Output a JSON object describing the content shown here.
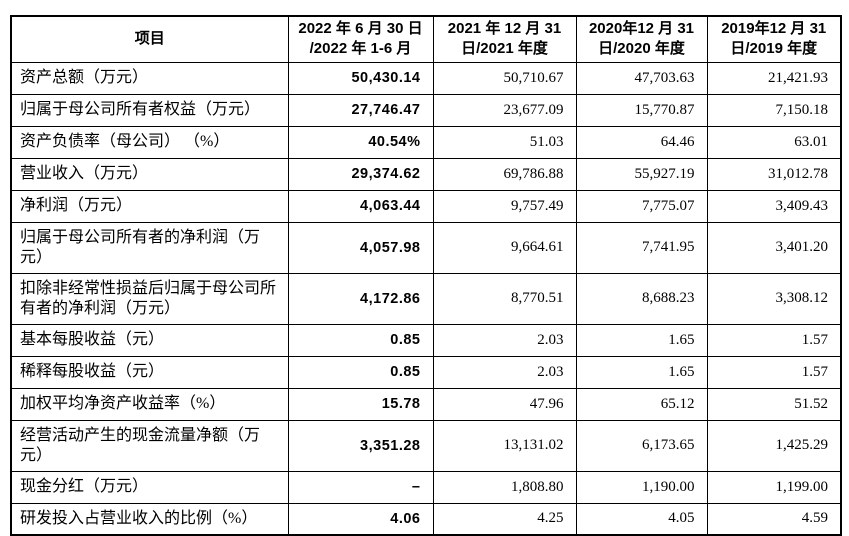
{
  "colors": {
    "background": "#ffffff",
    "border": "#000000",
    "text": "#000000"
  },
  "table": {
    "columns": [
      "项目",
      "2022 年 6 月 30 日\n/2022 年 1-6 月",
      "2021 年 12 月 31\n日/2021 年度",
      "2020年12 月 31\n日/2020 年度",
      "2019年12 月 31\n日/2019 年度"
    ],
    "rows": [
      {
        "label": "资产总额（万元）",
        "values": [
          "50,430.14",
          "50,710.67",
          "47,703.63",
          "21,421.93"
        ]
      },
      {
        "label": "归属于母公司所有者权益（万元）",
        "values": [
          "27,746.47",
          "23,677.09",
          "15,770.87",
          "7,150.18"
        ]
      },
      {
        "label": "资产负债率（母公司） （%）",
        "values": [
          "40.54%",
          "51.03",
          "64.46",
          "63.01"
        ]
      },
      {
        "label": "营业收入（万元）",
        "values": [
          "29,374.62",
          "69,786.88",
          "55,927.19",
          "31,012.78"
        ]
      },
      {
        "label": "净利润（万元）",
        "values": [
          "4,063.44",
          "9,757.49",
          "7,775.07",
          "3,409.43"
        ]
      },
      {
        "label": "归属于母公司所有者的净利润（万元）",
        "values": [
          "4,057.98",
          "9,664.61",
          "7,741.95",
          "3,401.20"
        ]
      },
      {
        "label": "扣除非经常性损益后归属于母公司所有者的净利润（万元）",
        "values": [
          "4,172.86",
          "8,770.51",
          "8,688.23",
          "3,308.12"
        ]
      },
      {
        "label": "基本每股收益（元）",
        "values": [
          "0.85",
          "2.03",
          "1.65",
          "1.57"
        ]
      },
      {
        "label": "稀释每股收益（元）",
        "values": [
          "0.85",
          "2.03",
          "1.65",
          "1.57"
        ]
      },
      {
        "label": "加权平均净资产收益率（%）",
        "values": [
          "15.78",
          "47.96",
          "65.12",
          "51.52"
        ]
      },
      {
        "label": "经营活动产生的现金流量净额（万元）",
        "values": [
          "3,351.28",
          "13,131.02",
          "6,173.65",
          "1,425.29"
        ]
      },
      {
        "label": "现金分红（万元）",
        "values": [
          "–",
          "1,808.80",
          "1,190.00",
          "1,199.00"
        ]
      },
      {
        "label": "研发投入占营业收入的比例（%）",
        "values": [
          "4.06",
          "4.25",
          "4.05",
          "4.59"
        ]
      }
    ]
  }
}
